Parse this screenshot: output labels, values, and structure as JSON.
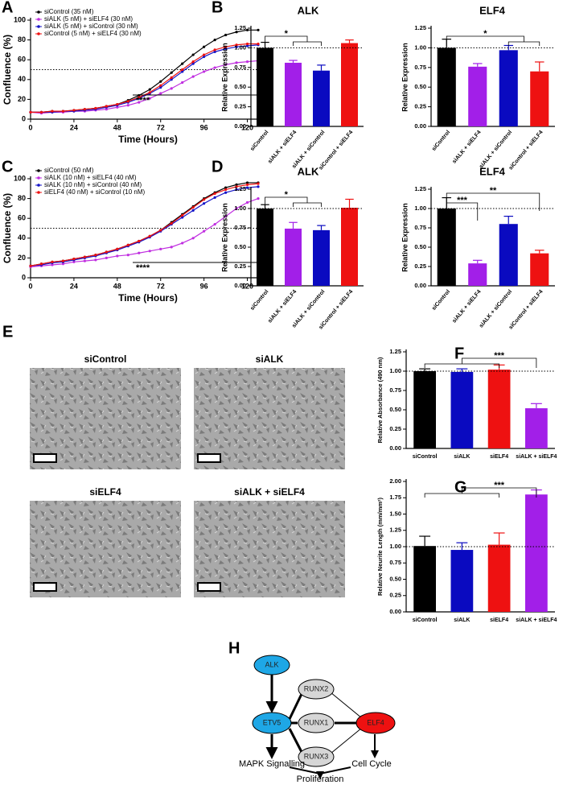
{
  "panel_labels": [
    "A",
    "B",
    "C",
    "D",
    "E",
    "F",
    "G",
    "H"
  ],
  "chart_data": [
    {
      "type": "line",
      "xlabel": "Time (Hours)",
      "ylabel": "Confluence (%)",
      "x": [
        0,
        6,
        12,
        18,
        24,
        30,
        36,
        42,
        48,
        54,
        60,
        66,
        72,
        78,
        84,
        90,
        96,
        102,
        108,
        114,
        120,
        126
      ],
      "xlim": [
        0,
        130
      ],
      "xticks": [
        0,
        24,
        48,
        72,
        96,
        120
      ],
      "ylim": [
        0,
        100
      ],
      "yticks": [
        0,
        20,
        40,
        60,
        80,
        100
      ],
      "reference_line": 50,
      "annotations": [
        "****"
      ],
      "legend": "upper-left",
      "series": [
        {
          "name": "siControl (35 nM)",
          "color": "#000000",
          "values": [
            7,
            7,
            8,
            8,
            9,
            10,
            11,
            13,
            15,
            19,
            24,
            30,
            38,
            47,
            56,
            65,
            73,
            80,
            85,
            88,
            90,
            90
          ]
        },
        {
          "name": "siALK (5 nM) + siELF4 (30 nM)",
          "color": "#c02ee0",
          "values": [
            7,
            6,
            7,
            7,
            8,
            8,
            9,
            10,
            12,
            14,
            17,
            21,
            26,
            31,
            37,
            43,
            48,
            52,
            55,
            57,
            58,
            59
          ]
        },
        {
          "name": "siALK (5 nM) + siControl (30 nM)",
          "color": "#1414c8",
          "values": [
            7,
            7,
            7,
            8,
            8,
            9,
            10,
            12,
            14,
            17,
            21,
            26,
            32,
            40,
            48,
            56,
            63,
            68,
            71,
            73,
            74,
            75
          ]
        },
        {
          "name": "siControl (5 nM) + siELF4 (30 nM)",
          "color": "#ee1111",
          "values": [
            7,
            7,
            8,
            8,
            9,
            10,
            11,
            13,
            15,
            18,
            22,
            27,
            34,
            42,
            50,
            58,
            65,
            70,
            73,
            75,
            76,
            76
          ]
        }
      ]
    },
    {
      "type": "bar",
      "title": "ALK",
      "ylabel": "Relative Expression",
      "categories": [
        "siControl",
        "siALK + siELF4",
        "siALK + siControl",
        "siControl + siELF4"
      ],
      "values": [
        1.0,
        0.81,
        0.71,
        1.06
      ],
      "errors": [
        0.07,
        0.03,
        0.07,
        0.04
      ],
      "colors": [
        "#000000",
        "#a21fe8",
        "#0a0ac0",
        "#ee1111"
      ],
      "ylim": [
        0,
        1.25
      ],
      "yticks": [
        {
          "value": 0,
          "label": "0.00"
        },
        {
          "value": 0.25,
          "label": "0.25"
        },
        {
          "value": 0.5,
          "label": "0.50"
        },
        {
          "value": 0.75,
          "label": "0.75"
        },
        {
          "value": 1,
          "label": "1.00"
        },
        {
          "value": 1.25,
          "label": "1.25"
        }
      ],
      "reference_line": 1,
      "annotations": [
        "*"
      ]
    },
    {
      "type": "bar",
      "title": "ELF4",
      "ylabel": "Relative Expression",
      "categories": [
        "siControl",
        "siALK + siELF4",
        "siALK + siControl",
        "siControl + siELF4"
      ],
      "values": [
        1.0,
        0.76,
        0.97,
        0.7
      ],
      "errors": [
        0.11,
        0.04,
        0.06,
        0.12
      ],
      "colors": [
        "#000000",
        "#a21fe8",
        "#0a0ac0",
        "#ee1111"
      ],
      "ylim": [
        0,
        1.25
      ],
      "yticks": [
        {
          "value": 0,
          "label": "0.00"
        },
        {
          "value": 0.25,
          "label": "0.25"
        },
        {
          "value": 0.5,
          "label": "0.50"
        },
        {
          "value": 0.75,
          "label": "0.75"
        },
        {
          "value": 1,
          "label": "1.00"
        },
        {
          "value": 1.25,
          "label": "1.25"
        }
      ],
      "reference_line": 1,
      "annotations": [
        "*"
      ]
    },
    {
      "type": "line",
      "xlabel": "Time (Hours)",
      "ylabel": "Confluence (%)",
      "x": [
        0,
        6,
        12,
        18,
        24,
        30,
        36,
        42,
        48,
        54,
        60,
        66,
        72,
        78,
        84,
        90,
        96,
        102,
        108,
        114,
        120,
        126
      ],
      "xlim": [
        0,
        130
      ],
      "xticks": [
        0,
        24,
        48,
        72,
        96,
        120
      ],
      "ylim": [
        0,
        100
      ],
      "yticks": [
        0,
        20,
        40,
        60,
        80,
        100
      ],
      "reference_line": 50,
      "annotations": [
        "****"
      ],
      "legend": "upper-left",
      "series": [
        {
          "name": "siControl (50 nM)",
          "color": "#000000",
          "values": [
            12,
            14,
            16,
            17,
            19,
            21,
            23,
            26,
            29,
            33,
            37,
            42,
            48,
            56,
            64,
            72,
            80,
            86,
            91,
            94,
            96,
            96
          ]
        },
        {
          "name": "siALK (10 nM) + siELF4 (40 nM)",
          "color": "#c02ee0",
          "values": [
            11,
            12,
            13,
            14,
            16,
            17,
            18,
            20,
            22,
            23,
            25,
            27,
            29,
            31,
            35,
            40,
            47,
            54,
            62,
            70,
            76,
            80
          ]
        },
        {
          "name": "siALK (10 nM) + siControl (40 nM)",
          "color": "#1414c8",
          "values": [
            12,
            13,
            15,
            16,
            18,
            20,
            22,
            25,
            28,
            32,
            36,
            41,
            47,
            54,
            61,
            68,
            75,
            81,
            86,
            89,
            91,
            92
          ]
        },
        {
          "name": "siELF4 (40 nM) + siControl (10 nM)",
          "color": "#ee1111",
          "values": [
            12,
            14,
            16,
            17,
            19,
            21,
            23,
            26,
            29,
            33,
            37,
            42,
            48,
            55,
            63,
            71,
            79,
            85,
            89,
            92,
            94,
            95
          ]
        }
      ]
    },
    {
      "type": "bar",
      "title": "ALK",
      "ylabel": "Relative Expression",
      "categories": [
        "siControl",
        "siALK + siELF4",
        "siALK + siControl",
        "siControl + siELF4"
      ],
      "values": [
        1.0,
        0.74,
        0.72,
        1.01
      ],
      "errors": [
        0.05,
        0.08,
        0.06,
        0.11
      ],
      "colors": [
        "#000000",
        "#a21fe8",
        "#0a0ac0",
        "#ee1111"
      ],
      "ylim": [
        0,
        1.25
      ],
      "yticks": [
        {
          "value": 0,
          "label": "0.00"
        },
        {
          "value": 0.25,
          "label": "0.25"
        },
        {
          "value": 0.5,
          "label": "0.50"
        },
        {
          "value": 0.75,
          "label": "0.75"
        },
        {
          "value": 1,
          "label": "1.00"
        },
        {
          "value": 1.25,
          "label": "1.25"
        }
      ],
      "reference_line": 1,
      "annotations": [
        "*"
      ]
    },
    {
      "type": "bar",
      "title": "ELF4",
      "ylabel": "Relative Expression",
      "categories": [
        "siControl",
        "siALK + siELF4",
        "siALK + siControl",
        "siControl + siELF4"
      ],
      "values": [
        1.0,
        0.29,
        0.8,
        0.42
      ],
      "errors": [
        0.14,
        0.04,
        0.1,
        0.04
      ],
      "colors": [
        "#000000",
        "#a21fe8",
        "#0a0ac0",
        "#ee1111"
      ],
      "ylim": [
        0,
        1.25
      ],
      "yticks": [
        {
          "value": 0,
          "label": "0.00"
        },
        {
          "value": 0.25,
          "label": "0.25"
        },
        {
          "value": 0.5,
          "label": "0.50"
        },
        {
          "value": 0.75,
          "label": "0.75"
        },
        {
          "value": 1,
          "label": "1.00"
        },
        {
          "value": 1.25,
          "label": "1.25"
        }
      ],
      "reference_line": 1,
      "annotations": [
        "***",
        "**"
      ]
    },
    {
      "type": "bar",
      "ylabel": "Relative Absorbance (490 nm)",
      "categories": [
        "siControl",
        "siALK",
        "siELF4",
        "siALK + siELF4"
      ],
      "values": [
        1.0,
        0.99,
        1.02,
        0.52
      ],
      "errors": [
        0.03,
        0.04,
        0.06,
        0.06
      ],
      "colors": [
        "#000000",
        "#0a0ac0",
        "#ee1111",
        "#a21fe8"
      ],
      "ylim": [
        0,
        1.25
      ],
      "yticks": [
        {
          "value": 0,
          "label": "0.00"
        },
        {
          "value": 0.25,
          "label": "0.25"
        },
        {
          "value": 0.5,
          "label": "0.50"
        },
        {
          "value": 0.75,
          "label": "0.75"
        },
        {
          "value": 1,
          "label": "1.00"
        },
        {
          "value": 1.25,
          "label": "1.25"
        }
      ],
      "reference_line": 1,
      "annotations": [
        "***"
      ]
    },
    {
      "type": "bar",
      "ylabel": "Relative Neurite Length (mm/mm²)",
      "categories": [
        "siControl",
        "siALK",
        "siELF4",
        "siALK + siELF4"
      ],
      "values": [
        1.01,
        0.95,
        1.03,
        1.8
      ],
      "errors": [
        0.15,
        0.11,
        0.18,
        0.07
      ],
      "colors": [
        "#000000",
        "#0a0ac0",
        "#ee1111",
        "#a21fe8"
      ],
      "ylim": [
        0,
        2
      ],
      "yticks": [
        {
          "value": 0,
          "label": "0.00"
        },
        {
          "value": 0.25,
          "label": "0.25"
        },
        {
          "value": 0.5,
          "label": "0.50"
        },
        {
          "value": 0.75,
          "label": "0.75"
        },
        {
          "value": 1,
          "label": "1.00"
        },
        {
          "value": 1.25,
          "label": "1.25"
        },
        {
          "value": 1.5,
          "label": "1.50"
        },
        {
          "value": 1.75,
          "label": "1.75"
        },
        {
          "value": 2,
          "label": "2.00"
        }
      ],
      "reference_line": 1,
      "annotations": [
        "***"
      ]
    }
  ],
  "images": [
    {
      "label": "siControl"
    },
    {
      "label": "siALK"
    },
    {
      "label": "siELF4"
    },
    {
      "label": "siALK + siELF4"
    }
  ],
  "diagram": {
    "nodes": [
      {
        "label": "ALK"
      },
      {
        "label": "RUNX2"
      },
      {
        "label": "ETV5"
      },
      {
        "label": "RUNX1"
      },
      {
        "label": "ELF4"
      },
      {
        "label": "RUNX3"
      }
    ],
    "outputs": [
      "MAPK Signalling",
      "Cell Cycle",
      "Proliferation"
    ]
  }
}
